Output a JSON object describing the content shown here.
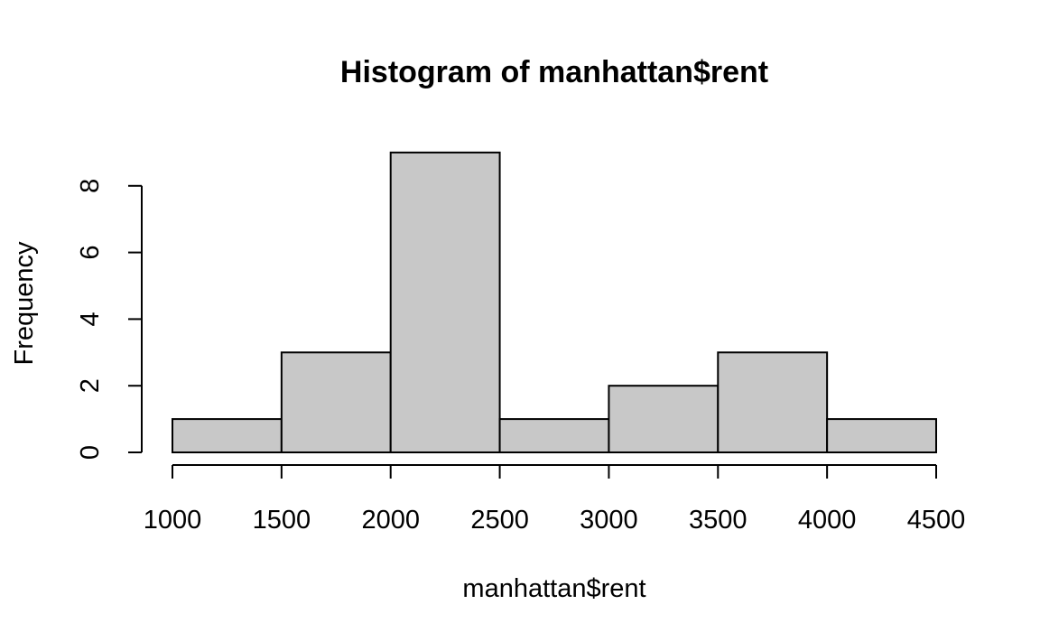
{
  "chart_data": {
    "type": "bar",
    "title": "Histogram of manhattan$rent",
    "xlabel": "manhattan$rent",
    "ylabel": "Frequency",
    "bins": [
      {
        "start": 1000,
        "end": 1500,
        "count": 1
      },
      {
        "start": 1500,
        "end": 2000,
        "count": 3
      },
      {
        "start": 2000,
        "end": 2500,
        "count": 9
      },
      {
        "start": 2500,
        "end": 3000,
        "count": 1
      },
      {
        "start": 3000,
        "end": 3500,
        "count": 2
      },
      {
        "start": 3500,
        "end": 4000,
        "count": 3
      },
      {
        "start": 4000,
        "end": 4500,
        "count": 1
      }
    ],
    "xlim": [
      1000,
      4500
    ],
    "ylim": [
      0,
      9
    ],
    "x_ticks": [
      1000,
      1500,
      2000,
      2500,
      3000,
      3500,
      4000,
      4500
    ],
    "y_ticks": [
      0,
      2,
      4,
      6,
      8
    ],
    "bar_color": "#c8c8c8",
    "grid": false,
    "legend": "none"
  }
}
